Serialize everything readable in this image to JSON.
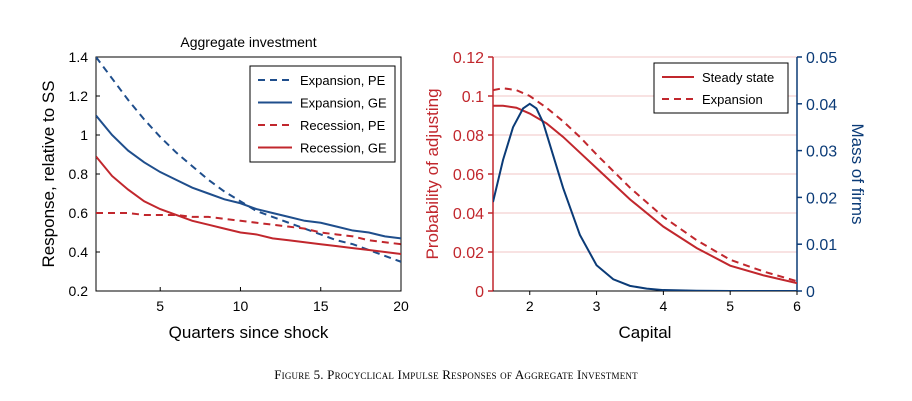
{
  "caption": "Figure 5. Procyclical Impulse Responses of Aggregate Investment",
  "colors": {
    "pe_blue": "#1f4e8c",
    "ge_blue": "#1f4e8c",
    "red": "#c1272d",
    "navy": "#0b3b77",
    "grid_red": "#f2c4c6"
  },
  "chart_data": [
    {
      "type": "line",
      "title": "Aggregate investment",
      "xlabel": "Quarters since shock",
      "ylabel": "Response, relative to SS",
      "xlim": [
        1,
        20
      ],
      "ylim": [
        0.2,
        1.4
      ],
      "xticks": [
        5,
        10,
        15,
        20
      ],
      "yticks": [
        0.2,
        0.4,
        0.6,
        0.8,
        1,
        1.2,
        1.4
      ],
      "ytick_labels": [
        "0.2",
        "0.4",
        "0.6",
        "0.8",
        "1",
        "1.2",
        "1.4"
      ],
      "legend": "top-right",
      "x": [
        1,
        2,
        3,
        4,
        5,
        6,
        7,
        8,
        9,
        10,
        11,
        12,
        13,
        14,
        15,
        16,
        17,
        18,
        19,
        20
      ],
      "series": [
        {
          "name": "Expansion, PE",
          "color": "#1f4e8c",
          "dash": true,
          "values": [
            1.4,
            1.29,
            1.18,
            1.08,
            0.99,
            0.91,
            0.84,
            0.77,
            0.71,
            0.66,
            0.61,
            0.58,
            0.55,
            0.52,
            0.49,
            0.46,
            0.44,
            0.41,
            0.38,
            0.35
          ]
        },
        {
          "name": "Expansion, GE",
          "color": "#1f4e8c",
          "dash": false,
          "values": [
            1.1,
            1.0,
            0.92,
            0.86,
            0.81,
            0.77,
            0.73,
            0.7,
            0.67,
            0.65,
            0.62,
            0.6,
            0.58,
            0.56,
            0.55,
            0.53,
            0.51,
            0.5,
            0.48,
            0.47
          ]
        },
        {
          "name": "Recession, PE",
          "color": "#c1272d",
          "dash": true,
          "values": [
            0.6,
            0.6,
            0.6,
            0.59,
            0.59,
            0.59,
            0.58,
            0.58,
            0.57,
            0.56,
            0.55,
            0.54,
            0.53,
            0.52,
            0.5,
            0.49,
            0.48,
            0.46,
            0.45,
            0.44
          ]
        },
        {
          "name": "Recession, GE",
          "color": "#c1272d",
          "dash": false,
          "values": [
            0.89,
            0.79,
            0.72,
            0.66,
            0.62,
            0.59,
            0.56,
            0.54,
            0.52,
            0.5,
            0.49,
            0.47,
            0.46,
            0.45,
            0.44,
            0.43,
            0.42,
            0.41,
            0.4,
            0.39
          ]
        }
      ]
    },
    {
      "type": "line",
      "title": "",
      "xlabel": "Capital",
      "ylabel": "Probability of adjusting",
      "ylabel_right": "Mass of firms",
      "xlim": [
        1.45,
        6
      ],
      "ylim": [
        0,
        0.12
      ],
      "ylim_right": [
        0,
        0.05
      ],
      "xticks": [
        2,
        3,
        4,
        5,
        6
      ],
      "yticks": [
        0,
        0.02,
        0.04,
        0.06,
        0.08,
        0.1,
        0.12
      ],
      "ytick_labels": [
        "0",
        "0.02",
        "0.04",
        "0.06",
        "0.08",
        "0.1",
        "0.12"
      ],
      "yticks_right": [
        0,
        0.01,
        0.02,
        0.03,
        0.04,
        0.05
      ],
      "ytick_labels_right": [
        "0",
        "0.01",
        "0.02",
        "0.03",
        "0.04",
        "0.05"
      ],
      "grid": "horizontal",
      "legend": "top-right",
      "series": [
        {
          "name": "Steady state",
          "color": "#c1272d",
          "dash": false,
          "axis": "left",
          "x": [
            1.45,
            1.6,
            1.8,
            2.0,
            2.25,
            2.5,
            2.75,
            3.0,
            3.5,
            4.0,
            4.5,
            5.0,
            5.5,
            6.0
          ],
          "values": [
            0.095,
            0.095,
            0.094,
            0.091,
            0.086,
            0.079,
            0.071,
            0.063,
            0.047,
            0.033,
            0.022,
            0.013,
            0.008,
            0.004
          ]
        },
        {
          "name": "Expansion",
          "color": "#c1272d",
          "dash": true,
          "axis": "left",
          "x": [
            1.45,
            1.6,
            1.8,
            2.0,
            2.25,
            2.5,
            2.75,
            3.0,
            3.5,
            4.0,
            4.5,
            5.0,
            5.5,
            6.0
          ],
          "values": [
            0.103,
            0.104,
            0.103,
            0.1,
            0.094,
            0.087,
            0.079,
            0.07,
            0.053,
            0.038,
            0.026,
            0.016,
            0.01,
            0.005
          ]
        },
        {
          "name": "",
          "color": "#0b3b77",
          "dash": false,
          "axis": "right",
          "x": [
            1.45,
            1.6,
            1.75,
            1.9,
            2.0,
            2.1,
            2.2,
            2.35,
            2.5,
            2.75,
            3.0,
            3.25,
            3.5,
            3.75,
            4.0,
            4.5,
            5.0,
            5.5,
            6.0
          ],
          "values": [
            0.019,
            0.028,
            0.035,
            0.039,
            0.04,
            0.039,
            0.036,
            0.029,
            0.022,
            0.012,
            0.0055,
            0.0025,
            0.0011,
            0.0005,
            0.0002,
            5e-05,
            0.0,
            0.0,
            0.0
          ]
        }
      ]
    }
  ]
}
